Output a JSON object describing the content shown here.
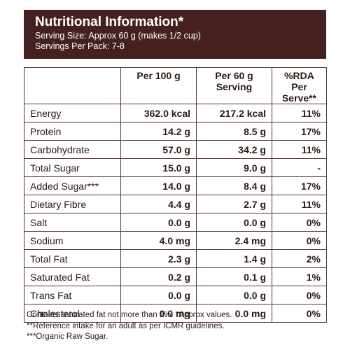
{
  "header": {
    "title": "Nutritional Information*",
    "serving_size": "Serving Size: Approx 60 g (makes 1/2 cup)",
    "servings_per_pack": "Servings Per Pack: 7-8"
  },
  "table": {
    "columns": [
      "",
      "Per 100 g",
      "Per 60 g Serving",
      "%RDA Per Serve**"
    ],
    "rows": [
      {
        "name": "Energy",
        "per100": "362.0 kcal",
        "per60": "217.2 kcal",
        "rda": "11%"
      },
      {
        "name": "Protein",
        "per100": "14.2 g",
        "per60": "8.5 g",
        "rda": "17%"
      },
      {
        "name": "Carbohydrate",
        "per100": "57.0 g",
        "per60": "34.2 g",
        "rda": "11%"
      },
      {
        "name": "Total Sugar",
        "per100": "15.0 g",
        "per60": "9.0 g",
        "rda": "-"
      },
      {
        "name": "Added Sugar***",
        "per100": "14.0 g",
        "per60": "8.4 g",
        "rda": "17%"
      },
      {
        "name": "Dietary Fibre",
        "per100": "4.4 g",
        "per60": "2.7 g",
        "rda": "11%"
      },
      {
        "name": "Salt",
        "per100": "0.0 g",
        "per60": "0.0 g",
        "rda": "0%"
      },
      {
        "name": "Sodium",
        "per100": "4.0 mg",
        "per60": "2.4 mg",
        "rda": "0%"
      },
      {
        "name": "Total Fat",
        "per100": "2.3 g",
        "per60": "1.4 g",
        "rda": "2%"
      },
      {
        "name": "Saturated Fat",
        "per100": "0.2 g",
        "per60": "0.1 g",
        "rda": "1%"
      },
      {
        "name": "Trans Fat",
        "per100": "0.0 g",
        "per60": "0.0 g",
        "rda": "0%"
      },
      {
        "name": "Cholesterol",
        "per100": "0.0 mg",
        "per60": "0.0 mg",
        "rda": "0%"
      }
    ]
  },
  "footnotes": [
    "Contains saturated fat not more than 1%. *Approx values.",
    "**Reference intake for an adult as per ICMR guidelines.",
    "***Organic Raw Sugar."
  ],
  "colors": {
    "header_bg": "#45201f",
    "text": "#2b1a17",
    "border": "#5a3430"
  }
}
